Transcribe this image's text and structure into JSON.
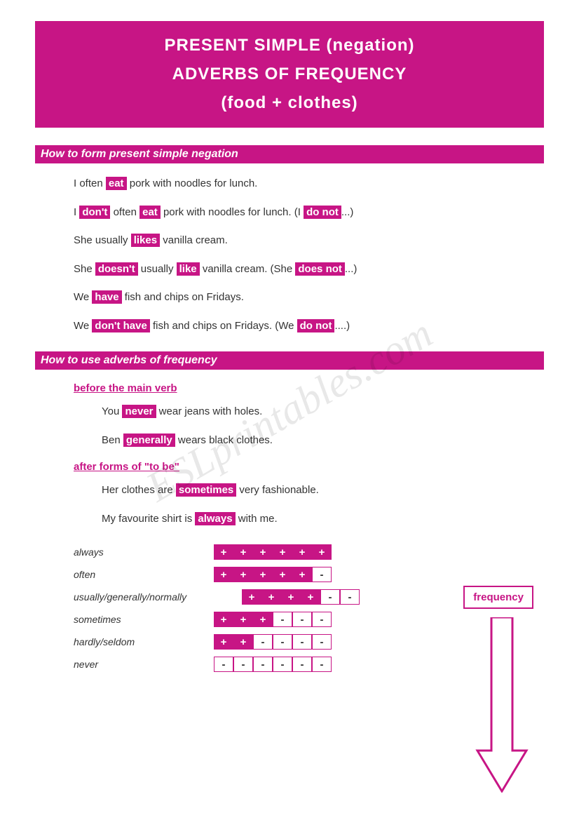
{
  "colors": {
    "brand": "#c71585",
    "bg": "#ffffff",
    "text": "#333333",
    "watermark": "rgba(0,0,0,0.09)"
  },
  "header": {
    "line1": "PRESENT SIMPLE (negation)",
    "line2": "ADVERBS OF FREQUENCY",
    "line3": "(food + clothes)"
  },
  "section1": {
    "title": "How to form present simple negation",
    "ex1a_pre": "I often ",
    "ex1a_hl": "eat",
    "ex1a_post": " pork with noodles for lunch.",
    "ex1b_pre": "I ",
    "ex1b_hl1": "don't",
    "ex1b_mid1": " often ",
    "ex1b_hl2": "eat",
    "ex1b_mid2": " pork with noodles for lunch. (I ",
    "ex1b_hl3": "do not",
    "ex1b_post": "...)",
    "ex2a_pre": "She usually ",
    "ex2a_hl": "likes",
    "ex2a_post": " vanilla cream.",
    "ex2b_pre": "She ",
    "ex2b_hl1": "doesn't",
    "ex2b_mid1": " usually ",
    "ex2b_hl2": "like",
    "ex2b_mid2": " vanilla cream. (She ",
    "ex2b_hl3": "does not",
    "ex2b_post": "...)",
    "ex3a_pre": "We ",
    "ex3a_hl": "have",
    "ex3a_post": " fish and chips on Fridays.",
    "ex3b_pre": "We ",
    "ex3b_hl1": "don't have",
    "ex3b_mid": " fish and chips on Fridays. (We ",
    "ex3b_hl2": "do not",
    "ex3b_post": "....)"
  },
  "section2": {
    "title": "How to use adverbs of frequency",
    "sub1": "before the main verb",
    "s1a_pre": "You ",
    "s1a_hl": "never",
    "s1a_post": " wear jeans with holes.",
    "s1b_pre": "Ben ",
    "s1b_hl": "generally",
    "s1b_post": " wears black clothes.",
    "sub2": "after forms of \"to be\"",
    "s2a_pre": "Her clothes are ",
    "s2a_hl": "sometimes",
    "s2a_post": " very fashionable.",
    "s2b_pre": "My favourite shirt is ",
    "s2b_hl": "always",
    "s2b_post": " with me."
  },
  "freq_label": "frequency",
  "frequency_table": {
    "cell_size": 28,
    "fill_color": "#c71585",
    "empty_color": "#ffffff",
    "rows": [
      {
        "label": "always",
        "cells": [
          "+",
          "+",
          "+",
          "+",
          "+",
          "+"
        ],
        "filled": 6
      },
      {
        "label": "often",
        "cells": [
          "+",
          "+",
          "+",
          "+",
          "+",
          "-"
        ],
        "filled": 5
      },
      {
        "label": "usually/generally/normally",
        "cells": [
          "+",
          "+",
          "+",
          "+",
          "-",
          "-"
        ],
        "filled": 4
      },
      {
        "label": "sometimes",
        "cells": [
          "+",
          "+",
          "+",
          "-",
          "-",
          "-"
        ],
        "filled": 3
      },
      {
        "label": "hardly/seldom",
        "cells": [
          "+",
          "+",
          "-",
          "-",
          "-",
          "-"
        ],
        "filled": 2
      },
      {
        "label": "never",
        "cells": [
          "-",
          "-",
          "-",
          "-",
          "-",
          "-"
        ],
        "filled": 0
      }
    ]
  },
  "watermark": "ESLprintables.com"
}
